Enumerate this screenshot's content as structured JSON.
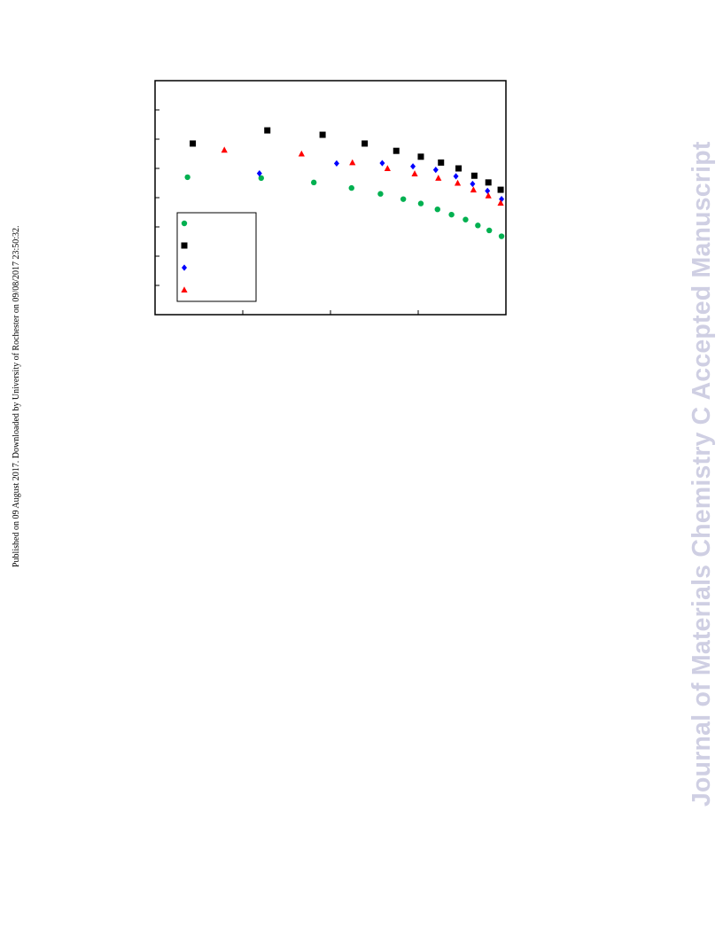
{
  "side_note": "Published on 09 August 2017. Downloaded by University of Rochester on 09/08/2017 23:50:32.",
  "watermark": "Journal of Materials Chemistry C Accepted Manuscript",
  "colors": {
    "series_green": "#00b050",
    "series_black": "#000000",
    "series_blue": "#0000ff",
    "series_red": "#ff0000"
  },
  "chart_data": {
    "type": "scatter",
    "title": "",
    "xlabel": "",
    "ylabel": "",
    "xlim": [
      0,
      4
    ],
    "ylim": [
      0,
      8
    ],
    "grid": false,
    "legend": "lower-left",
    "series": [
      {
        "marker": "circle",
        "color": "#00b050",
        "points": [
          [
            0.37,
            4.7
          ],
          [
            1.21,
            4.67
          ],
          [
            1.81,
            4.52
          ],
          [
            2.24,
            4.33
          ],
          [
            2.57,
            4.13
          ],
          [
            2.83,
            3.95
          ],
          [
            3.03,
            3.8
          ],
          [
            3.22,
            3.6
          ],
          [
            3.38,
            3.42
          ],
          [
            3.54,
            3.25
          ],
          [
            3.68,
            3.05
          ],
          [
            3.81,
            2.88
          ],
          [
            3.95,
            2.68
          ]
        ]
      },
      {
        "marker": "square",
        "color": "#000000",
        "points": [
          [
            0.43,
            5.85
          ],
          [
            1.28,
            6.3
          ],
          [
            1.91,
            6.15
          ],
          [
            2.39,
            5.85
          ],
          [
            2.75,
            5.6
          ],
          [
            3.03,
            5.4
          ],
          [
            3.26,
            5.2
          ],
          [
            3.46,
            5.0
          ],
          [
            3.64,
            4.75
          ],
          [
            3.8,
            4.52
          ],
          [
            3.94,
            4.27
          ]
        ]
      },
      {
        "marker": "diamond",
        "color": "#0000ff",
        "points": [
          [
            1.19,
            4.83
          ],
          [
            2.07,
            5.17
          ],
          [
            2.59,
            5.18
          ],
          [
            2.94,
            5.07
          ],
          [
            3.2,
            4.95
          ],
          [
            3.43,
            4.73
          ],
          [
            3.62,
            4.47
          ],
          [
            3.79,
            4.23
          ],
          [
            3.95,
            3.95
          ]
        ]
      },
      {
        "marker": "triangle",
        "color": "#ff0000",
        "points": [
          [
            0.79,
            5.63
          ],
          [
            1.67,
            5.5
          ],
          [
            2.25,
            5.2
          ],
          [
            2.65,
            5.0
          ],
          [
            2.96,
            4.82
          ],
          [
            3.23,
            4.67
          ],
          [
            3.45,
            4.5
          ],
          [
            3.63,
            4.27
          ],
          [
            3.8,
            4.07
          ],
          [
            3.94,
            3.82
          ]
        ]
      }
    ]
  }
}
